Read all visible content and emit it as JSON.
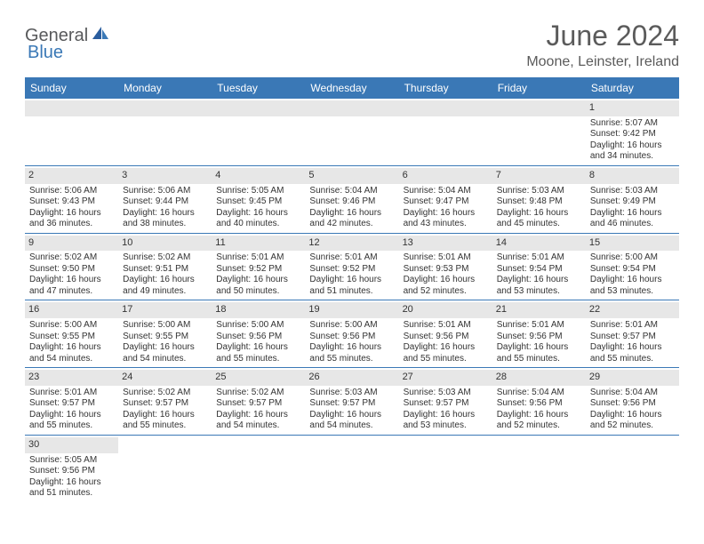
{
  "logo": {
    "part1": "General",
    "part2": "Blue"
  },
  "title": "June 2024",
  "subtitle": "Moone, Leinster, Ireland",
  "colors": {
    "header_bg": "#3a78b6",
    "header_text": "#ffffff",
    "daynum_bg": "#e7e7e7",
    "border": "#3a78b6",
    "title_color": "#5b5b5b",
    "logo_gray": "#58595b",
    "logo_blue": "#3a78b6"
  },
  "typography": {
    "title_fontsize": 32,
    "subtitle_fontsize": 16,
    "header_fontsize": 12,
    "cell_fontsize": 10
  },
  "weekdays": [
    "Sunday",
    "Monday",
    "Tuesday",
    "Wednesday",
    "Thursday",
    "Friday",
    "Saturday"
  ],
  "weeks": [
    [
      null,
      null,
      null,
      null,
      null,
      null,
      {
        "d": "1",
        "sr": "5:07 AM",
        "ss": "9:42 PM",
        "dl": "16 hours and 34 minutes."
      }
    ],
    [
      {
        "d": "2",
        "sr": "5:06 AM",
        "ss": "9:43 PM",
        "dl": "16 hours and 36 minutes."
      },
      {
        "d": "3",
        "sr": "5:06 AM",
        "ss": "9:44 PM",
        "dl": "16 hours and 38 minutes."
      },
      {
        "d": "4",
        "sr": "5:05 AM",
        "ss": "9:45 PM",
        "dl": "16 hours and 40 minutes."
      },
      {
        "d": "5",
        "sr": "5:04 AM",
        "ss": "9:46 PM",
        "dl": "16 hours and 42 minutes."
      },
      {
        "d": "6",
        "sr": "5:04 AM",
        "ss": "9:47 PM",
        "dl": "16 hours and 43 minutes."
      },
      {
        "d": "7",
        "sr": "5:03 AM",
        "ss": "9:48 PM",
        "dl": "16 hours and 45 minutes."
      },
      {
        "d": "8",
        "sr": "5:03 AM",
        "ss": "9:49 PM",
        "dl": "16 hours and 46 minutes."
      }
    ],
    [
      {
        "d": "9",
        "sr": "5:02 AM",
        "ss": "9:50 PM",
        "dl": "16 hours and 47 minutes."
      },
      {
        "d": "10",
        "sr": "5:02 AM",
        "ss": "9:51 PM",
        "dl": "16 hours and 49 minutes."
      },
      {
        "d": "11",
        "sr": "5:01 AM",
        "ss": "9:52 PM",
        "dl": "16 hours and 50 minutes."
      },
      {
        "d": "12",
        "sr": "5:01 AM",
        "ss": "9:52 PM",
        "dl": "16 hours and 51 minutes."
      },
      {
        "d": "13",
        "sr": "5:01 AM",
        "ss": "9:53 PM",
        "dl": "16 hours and 52 minutes."
      },
      {
        "d": "14",
        "sr": "5:01 AM",
        "ss": "9:54 PM",
        "dl": "16 hours and 53 minutes."
      },
      {
        "d": "15",
        "sr": "5:00 AM",
        "ss": "9:54 PM",
        "dl": "16 hours and 53 minutes."
      }
    ],
    [
      {
        "d": "16",
        "sr": "5:00 AM",
        "ss": "9:55 PM",
        "dl": "16 hours and 54 minutes."
      },
      {
        "d": "17",
        "sr": "5:00 AM",
        "ss": "9:55 PM",
        "dl": "16 hours and 54 minutes."
      },
      {
        "d": "18",
        "sr": "5:00 AM",
        "ss": "9:56 PM",
        "dl": "16 hours and 55 minutes."
      },
      {
        "d": "19",
        "sr": "5:00 AM",
        "ss": "9:56 PM",
        "dl": "16 hours and 55 minutes."
      },
      {
        "d": "20",
        "sr": "5:01 AM",
        "ss": "9:56 PM",
        "dl": "16 hours and 55 minutes."
      },
      {
        "d": "21",
        "sr": "5:01 AM",
        "ss": "9:56 PM",
        "dl": "16 hours and 55 minutes."
      },
      {
        "d": "22",
        "sr": "5:01 AM",
        "ss": "9:57 PM",
        "dl": "16 hours and 55 minutes."
      }
    ],
    [
      {
        "d": "23",
        "sr": "5:01 AM",
        "ss": "9:57 PM",
        "dl": "16 hours and 55 minutes."
      },
      {
        "d": "24",
        "sr": "5:02 AM",
        "ss": "9:57 PM",
        "dl": "16 hours and 55 minutes."
      },
      {
        "d": "25",
        "sr": "5:02 AM",
        "ss": "9:57 PM",
        "dl": "16 hours and 54 minutes."
      },
      {
        "d": "26",
        "sr": "5:03 AM",
        "ss": "9:57 PM",
        "dl": "16 hours and 54 minutes."
      },
      {
        "d": "27",
        "sr": "5:03 AM",
        "ss": "9:57 PM",
        "dl": "16 hours and 53 minutes."
      },
      {
        "d": "28",
        "sr": "5:04 AM",
        "ss": "9:56 PM",
        "dl": "16 hours and 52 minutes."
      },
      {
        "d": "29",
        "sr": "5:04 AM",
        "ss": "9:56 PM",
        "dl": "16 hours and 52 minutes."
      }
    ],
    [
      {
        "d": "30",
        "sr": "5:05 AM",
        "ss": "9:56 PM",
        "dl": "16 hours and 51 minutes."
      },
      null,
      null,
      null,
      null,
      null,
      null
    ]
  ],
  "labels": {
    "sunrise": "Sunrise:",
    "sunset": "Sunset:",
    "daylight": "Daylight:"
  }
}
